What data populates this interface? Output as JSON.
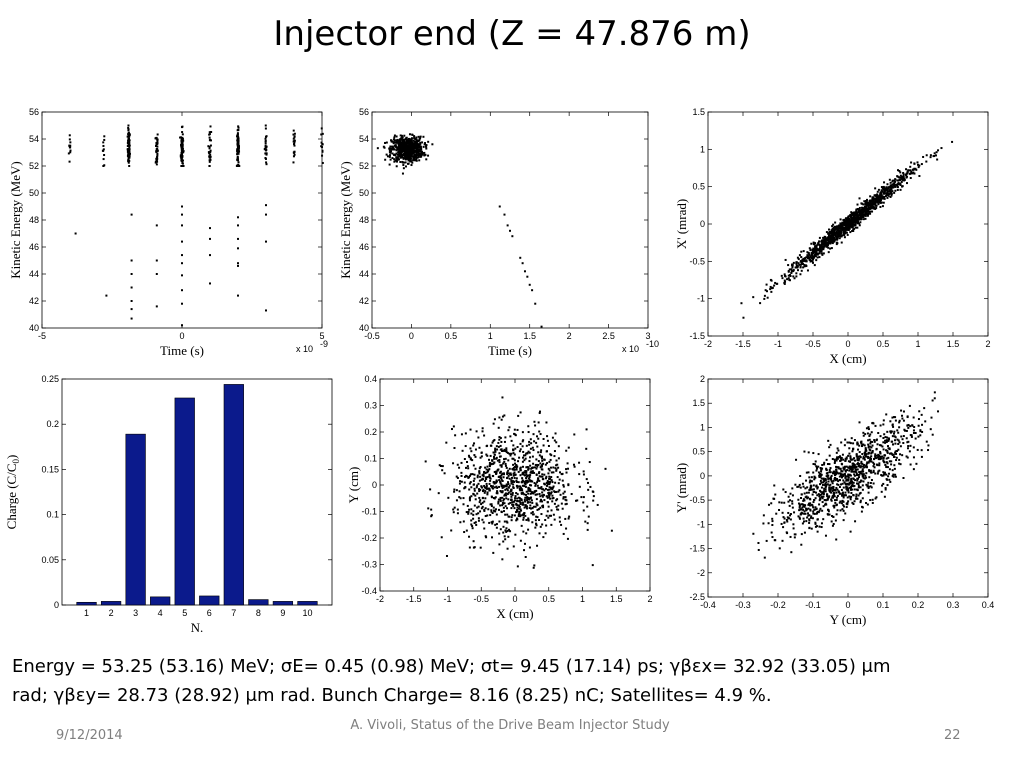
{
  "slide": {
    "title": "Injector end (Z = 47.876 m)",
    "summary_line1": "Energy = 53.25 (53.16) MeV; σE= 0.45 (0.98) MeV; σt= 9.45 (17.14) ps;  γβεx= 32.92 (33.05) μm",
    "summary_line2": "rad; γβεy= 28.73 (28.92) μm rad. Bunch Charge= 8.16 (8.25) nC; Satellites= 4.9 %.",
    "footer_date": "9/12/2014",
    "footer_center": "A. Vivoli, Status of the Drive Beam Injector Study",
    "footer_page": "22"
  },
  "chart_data": [
    {
      "type": "scatter",
      "title": "",
      "xlabel": "Time  (s)",
      "ylabel": "Kinetic Energy  (MeV)",
      "x_multiplier": "x 10",
      "x_exponent": "-9",
      "xlim": [
        -5,
        5
      ],
      "ylim": [
        40,
        56
      ],
      "xticks": [
        "-5",
        "0",
        "5"
      ],
      "yticks": [
        "40",
        "42",
        "44",
        "46",
        "48",
        "50",
        "52",
        "54",
        "56"
      ],
      "clusters_x": [
        -4,
        -2.8,
        -1.9,
        -0.9,
        0,
        1,
        2,
        3,
        4,
        5
      ],
      "main_band": [
        52,
        55
      ],
      "satellites": [
        [
          -3.8,
          47
        ],
        [
          -2.7,
          42.4
        ],
        [
          -1.8,
          48.4
        ],
        [
          -1.8,
          45
        ],
        [
          -1.8,
          44
        ],
        [
          -1.8,
          43
        ],
        [
          -1.8,
          42
        ],
        [
          -1.8,
          41.4
        ],
        [
          -1.8,
          40.7
        ],
        [
          -0.9,
          47.6
        ],
        [
          -0.9,
          45
        ],
        [
          -0.9,
          44
        ],
        [
          -0.9,
          41.6
        ],
        [
          0,
          49
        ],
        [
          0,
          48.4
        ],
        [
          0,
          47.6
        ],
        [
          0,
          46.4
        ],
        [
          0,
          45.4
        ],
        [
          0,
          44.8
        ],
        [
          0,
          43.9
        ],
        [
          0,
          42.8
        ],
        [
          0,
          41.8
        ],
        [
          0,
          40.2
        ],
        [
          1,
          47.4
        ],
        [
          1,
          46.6
        ],
        [
          1,
          45.4
        ],
        [
          1,
          43.3
        ],
        [
          2,
          48.2
        ],
        [
          2,
          47.6
        ],
        [
          2,
          46.6
        ],
        [
          2,
          45.9
        ],
        [
          2,
          44.8
        ],
        [
          2,
          44.6
        ],
        [
          2,
          42.4
        ],
        [
          3,
          49.1
        ],
        [
          3,
          48.4
        ],
        [
          3,
          46.4
        ],
        [
          3,
          41.3
        ]
      ]
    },
    {
      "type": "scatter",
      "title": "",
      "xlabel": "Time  (s)",
      "ylabel": "Kinetic Energy  (MeV)",
      "x_multiplier": "x 10",
      "x_exponent": "-10",
      "xlim": [
        -0.5,
        3
      ],
      "ylim": [
        40,
        56
      ],
      "xticks": [
        "-0.5",
        "0",
        "0.5",
        "1",
        "1.5",
        "2",
        "2.5",
        "3"
      ],
      "yticks": [
        "40",
        "42",
        "44",
        "46",
        "48",
        "50",
        "52",
        "54",
        "56"
      ],
      "core": {
        "x_center": -0.05,
        "x_sigma": 0.1,
        "y_center": 53.25,
        "y_sigma": 0.45
      },
      "tail": [
        [
          1.12,
          49
        ],
        [
          1.18,
          48.4
        ],
        [
          1.22,
          47.6
        ],
        [
          1.25,
          47.2
        ],
        [
          1.28,
          46.8
        ],
        [
          1.38,
          45.2
        ],
        [
          1.41,
          44.8
        ],
        [
          1.44,
          44.2
        ],
        [
          1.47,
          43.8
        ],
        [
          1.5,
          43.2
        ],
        [
          1.53,
          42.8
        ],
        [
          1.57,
          41.8
        ],
        [
          1.65,
          40.1
        ]
      ]
    },
    {
      "type": "scatter",
      "title": "",
      "xlabel": "X  (cm)",
      "ylabel": "X'  (mrad)",
      "xlim": [
        -2,
        2
      ],
      "ylim": [
        -1.5,
        1.5
      ],
      "xticks": [
        "-2",
        "-1.5",
        "-1",
        "-0.5",
        "0",
        "0.5",
        "1",
        "1.5",
        "2"
      ],
      "yticks": [
        "-1.5",
        "-1",
        "-0.5",
        "0",
        "0.5",
        "1",
        "1.5"
      ],
      "x_sigma": 0.45,
      "slope": 0.78,
      "y_sigma": 0.06
    },
    {
      "type": "bar",
      "title": "",
      "xlabel": "N.",
      "ylabel": "Charge (C/C",
      "ylabel_sub": "0",
      "ylabel_end": ")",
      "categories": [
        "1",
        "2",
        "3",
        "4",
        "5",
        "6",
        "7",
        "8",
        "9",
        "10"
      ],
      "values": [
        0.003,
        0.004,
        0.189,
        0.009,
        0.229,
        0.01,
        0.244,
        0.006,
        0.004,
        0.004
      ],
      "xlim": [
        0,
        11
      ],
      "ylim": [
        0,
        0.25
      ],
      "yticks": [
        "0",
        "0.05",
        "0.1",
        "0.15",
        "0.2",
        "0.25"
      ],
      "bar_color": "#0b1a8c"
    },
    {
      "type": "scatter",
      "title": "",
      "xlabel": "X  (cm)",
      "ylabel": "Y  (cm)",
      "xlim": [
        -2,
        2
      ],
      "ylim": [
        -0.4,
        0.4
      ],
      "xticks": [
        "-2",
        "-1.5",
        "-1",
        "-0.5",
        "0",
        "0.5",
        "1",
        "1.5",
        "2"
      ],
      "yticks": [
        "-0.4",
        "-0.3",
        "-0.2",
        "-0.1",
        "0",
        "0.1",
        "0.2",
        "0.3",
        "0.4"
      ],
      "x_sigma": 0.45,
      "y_sigma": 0.1
    },
    {
      "type": "scatter",
      "title": "",
      "xlabel": "Y  (cm)",
      "ylabel": "Y'  (mrad)",
      "xlim": [
        -0.4,
        0.4
      ],
      "ylim": [
        -2.5,
        2
      ],
      "xticks": [
        "-0.4",
        "-0.3",
        "-0.2",
        "-0.1",
        "0",
        "0.1",
        "0.2",
        "0.3",
        "0.4"
      ],
      "yticks": [
        "-2.5",
        "-2",
        "-1.5",
        "-1",
        "-0.5",
        "0",
        "0.5",
        "1",
        "1.5",
        "2"
      ],
      "x_sigma": 0.1,
      "slope": 4.5,
      "y_sigma": 0.35
    }
  ]
}
